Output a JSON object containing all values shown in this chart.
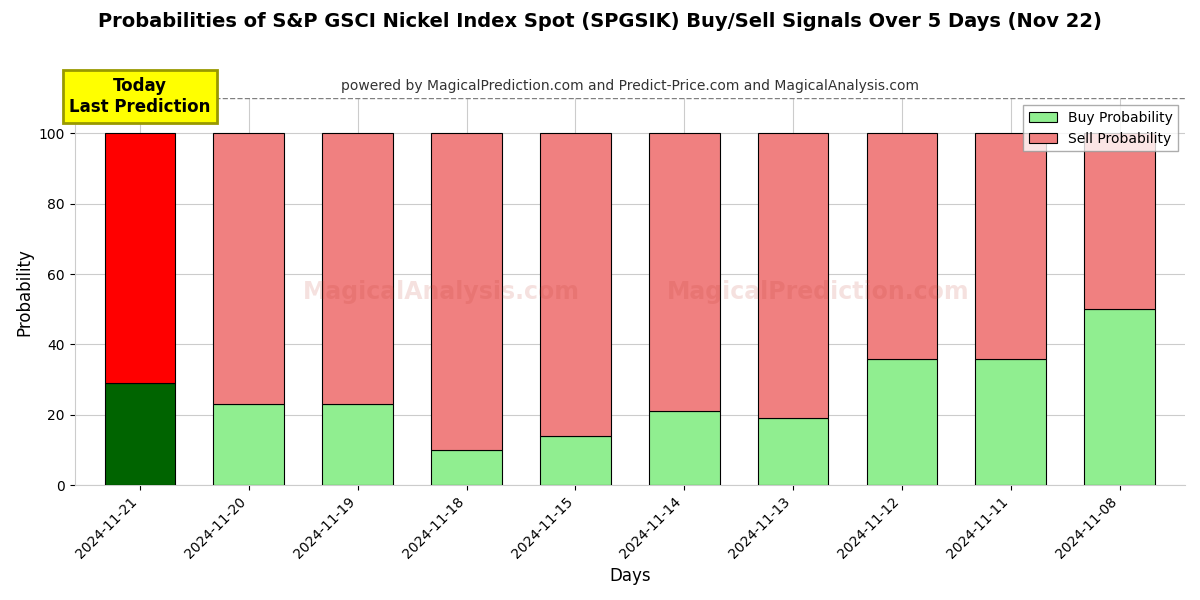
{
  "title": "Probabilities of S&P GSCI Nickel Index Spot (SPGSIK) Buy/Sell Signals Over 5 Days (Nov 22)",
  "subtitle": "powered by MagicalPrediction.com and Predict-Price.com and MagicalAnalysis.com",
  "xlabel": "Days",
  "ylabel": "Probability",
  "categories": [
    "2024-11-21",
    "2024-11-20",
    "2024-11-19",
    "2024-11-18",
    "2024-11-15",
    "2024-11-14",
    "2024-11-13",
    "2024-11-12",
    "2024-11-11",
    "2024-11-08"
  ],
  "buy_values": [
    29,
    23,
    23,
    10,
    14,
    21,
    19,
    36,
    36,
    50
  ],
  "sell_values": [
    71,
    77,
    77,
    90,
    86,
    79,
    81,
    64,
    64,
    50
  ],
  "buy_color_today": "#006400",
  "sell_color_today": "#FF0000",
  "buy_color_normal": "#90EE90",
  "sell_color_normal": "#F08080",
  "bar_edge_color": "#000000",
  "today_label_bg": "#FFFF00",
  "today_label_text": "Today\nLast Prediction",
  "legend_buy": "Buy Probability",
  "legend_sell": "Sell Probability",
  "ylim": [
    0,
    110
  ],
  "yticks": [
    0,
    20,
    40,
    60,
    80,
    100
  ],
  "dashed_line_y": 110,
  "background_color": "#ffffff",
  "grid_color": "#cccccc",
  "bar_width": 0.65
}
